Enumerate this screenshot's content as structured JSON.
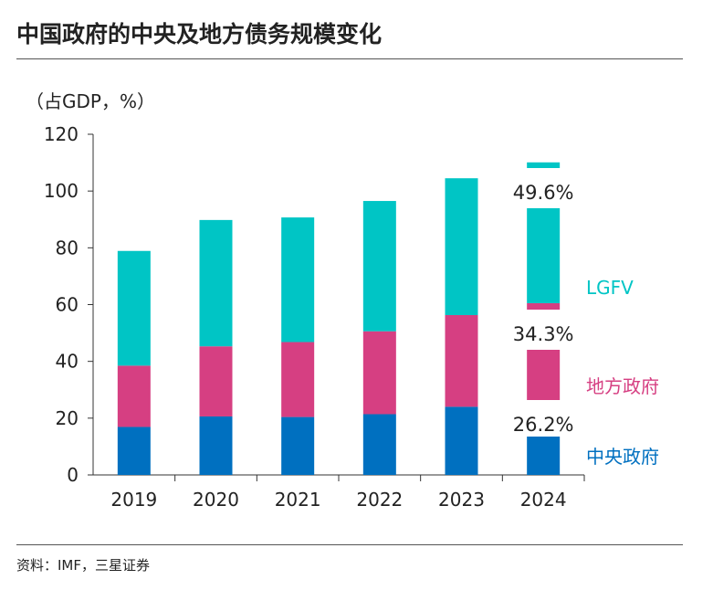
{
  "title": "中国政府的中央及地方债务规模变化",
  "source": "资料：IMF，三星证券",
  "chart_data": {
    "type": "bar",
    "stacked": true,
    "title": "中国政府的中央及地方债务规模变化",
    "ylabel": "（占GDP，%）",
    "ylim": [
      0,
      120
    ],
    "yticks": [
      0,
      20,
      40,
      60,
      80,
      100,
      120
    ],
    "grid": false,
    "legend": "right, inline labels",
    "categories": [
      "2019",
      "2020",
      "2021",
      "2022",
      "2023",
      "2024"
    ],
    "series": [
      {
        "name": "中央政府",
        "color": "#0070c0",
        "values": [
          16.9,
          20.6,
          20.4,
          21.4,
          24.0,
          26.2
        ]
      },
      {
        "name": "地方政府",
        "color": "#d63f82",
        "values": [
          21.6,
          24.7,
          26.4,
          29.2,
          32.3,
          34.3
        ]
      },
      {
        "name": "LGFV",
        "color": "#00c5c5",
        "values": [
          40.4,
          44.5,
          43.9,
          45.9,
          48.2,
          49.6
        ]
      }
    ],
    "annotations": [
      {
        "category": "2024",
        "series": "中央政府",
        "text": "26.2%"
      },
      {
        "category": "2024",
        "series": "地方政府",
        "text": "34.3%"
      },
      {
        "category": "2024",
        "series": "LGFV",
        "text": "49.6%"
      }
    ]
  }
}
